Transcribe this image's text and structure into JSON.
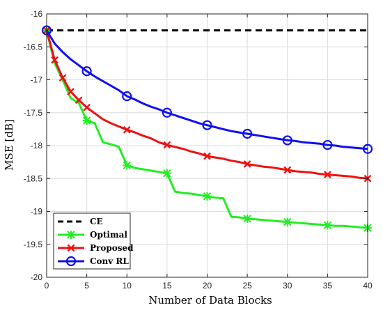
{
  "chart_data": {
    "type": "line",
    "xlabel": "Number of Data Blocks",
    "ylabel": "MSE [dB]",
    "xlim": [
      0,
      40
    ],
    "ylim": [
      -20,
      -16
    ],
    "xticks": [
      0,
      5,
      10,
      15,
      20,
      25,
      30,
      35,
      40
    ],
    "yticks": [
      -16,
      -16.5,
      -17,
      -17.5,
      -18,
      -18.5,
      -19,
      -19.5,
      -20
    ],
    "xtick_labels": [
      "0",
      "5",
      "10",
      "15",
      "20",
      "25",
      "30",
      "35",
      "40"
    ],
    "ytick_labels": [
      "-16",
      "-16.5",
      "-17",
      "-17.5",
      "-18",
      "-18.5",
      "-19",
      "-19.5",
      "-20"
    ],
    "grid": true,
    "legend_position": "bottom-left",
    "series": [
      {
        "name": "CE",
        "color": "#000000",
        "line_style": "dashed",
        "marker": "none",
        "x": [
          0,
          40
        ],
        "y": [
          -16.25,
          -16.25
        ]
      },
      {
        "name": "Optimal",
        "color": "#22ee22",
        "line_style": "solid",
        "marker": "asterisk",
        "x": [
          0,
          1,
          2,
          3,
          4,
          5,
          6,
          7,
          8,
          9,
          10,
          11,
          12,
          13,
          14,
          15,
          16,
          17,
          18,
          19,
          20,
          21,
          22,
          23,
          24,
          25,
          26,
          27,
          28,
          29,
          30,
          31,
          32,
          33,
          34,
          35,
          36,
          37,
          38,
          39,
          40
        ],
        "y": [
          -16.25,
          -16.75,
          -17.0,
          -17.28,
          -17.35,
          -17.62,
          -17.66,
          -17.95,
          -17.98,
          -18.02,
          -18.3,
          -18.34,
          -18.36,
          -18.38,
          -18.4,
          -18.42,
          -18.7,
          -18.72,
          -18.73,
          -18.75,
          -18.77,
          -18.79,
          -18.8,
          -19.08,
          -19.09,
          -19.11,
          -19.12,
          -19.13,
          -19.14,
          -19.15,
          -19.16,
          -19.17,
          -19.18,
          -19.19,
          -19.2,
          -19.21,
          -19.22,
          -19.22,
          -19.23,
          -19.24,
          -19.25
        ],
        "marker_x": [
          0,
          5,
          10,
          15,
          20,
          25,
          30,
          35,
          40
        ]
      },
      {
        "name": "Proposed",
        "color": "#ee1111",
        "line_style": "solid",
        "marker": "x",
        "x": [
          0,
          1,
          2,
          3,
          4,
          5,
          6,
          7,
          8,
          9,
          10,
          11,
          12,
          13,
          14,
          15,
          16,
          17,
          18,
          19,
          20,
          21,
          22,
          23,
          24,
          25,
          26,
          27,
          28,
          29,
          30,
          31,
          32,
          33,
          34,
          35,
          36,
          37,
          38,
          39,
          40
        ],
        "y": [
          -16.25,
          -16.7,
          -16.97,
          -17.18,
          -17.31,
          -17.42,
          -17.51,
          -17.6,
          -17.66,
          -17.71,
          -17.76,
          -17.8,
          -17.85,
          -17.89,
          -17.95,
          -17.99,
          -18.02,
          -18.05,
          -18.09,
          -18.12,
          -18.16,
          -18.18,
          -18.2,
          -18.23,
          -18.25,
          -18.28,
          -18.3,
          -18.32,
          -18.33,
          -18.35,
          -18.37,
          -18.39,
          -18.4,
          -18.41,
          -18.43,
          -18.44,
          -18.45,
          -18.46,
          -18.47,
          -18.49,
          -18.5
        ],
        "marker_x": [
          0,
          1,
          2,
          3,
          4,
          5,
          10,
          15,
          20,
          25,
          30,
          35,
          40
        ]
      },
      {
        "name": "Conv RL",
        "color": "#1010ee",
        "line_style": "solid",
        "marker": "circle",
        "x": [
          0,
          1,
          2,
          3,
          4,
          5,
          6,
          7,
          8,
          9,
          10,
          11,
          12,
          13,
          14,
          15,
          16,
          17,
          18,
          19,
          20,
          21,
          22,
          23,
          24,
          25,
          26,
          27,
          28,
          29,
          30,
          31,
          32,
          33,
          34,
          35,
          36,
          37,
          38,
          39,
          40
        ],
        "y": [
          -16.25,
          -16.45,
          -16.58,
          -16.69,
          -16.78,
          -16.87,
          -16.95,
          -17.02,
          -17.09,
          -17.16,
          -17.25,
          -17.3,
          -17.36,
          -17.41,
          -17.45,
          -17.5,
          -17.54,
          -17.58,
          -17.62,
          -17.66,
          -17.69,
          -17.72,
          -17.75,
          -17.78,
          -17.8,
          -17.82,
          -17.84,
          -17.86,
          -17.88,
          -17.9,
          -17.92,
          -17.93,
          -17.95,
          -17.96,
          -17.97,
          -17.99,
          -18.0,
          -18.02,
          -18.03,
          -18.04,
          -18.05
        ],
        "marker_x": [
          0,
          5,
          10,
          15,
          20,
          25,
          30,
          35,
          40
        ]
      }
    ]
  }
}
